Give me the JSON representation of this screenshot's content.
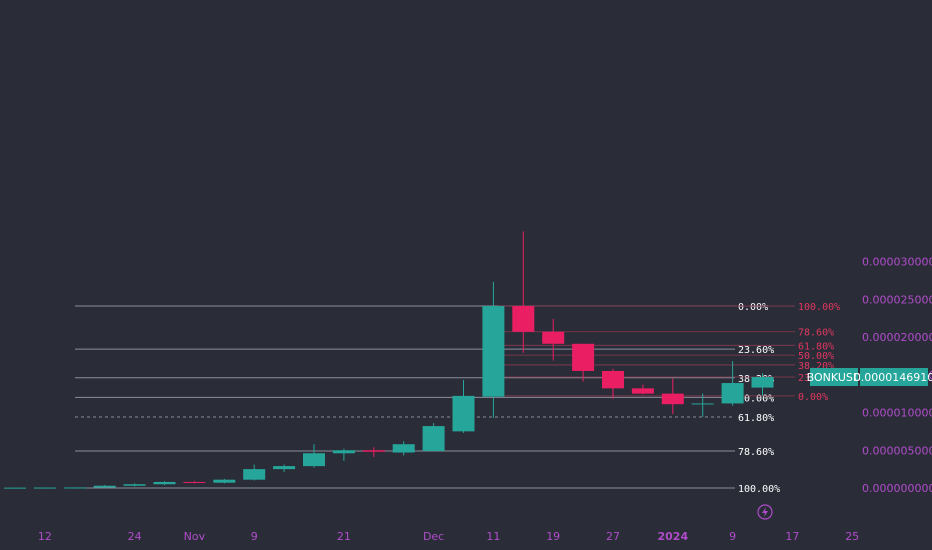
{
  "chart_data": {
    "type": "candlestick",
    "symbol": "BONKUSD",
    "last_price_label": "0.0000146910",
    "colors": {
      "up": "#26a69a",
      "down": "#e91e63",
      "background": "#2a2d38",
      "axis_text": "#b04ccb",
      "fib_line": "#8a8f9c",
      "fib2_text": "#e0365f"
    },
    "y_axis": {
      "range": [
        -5e-07,
        3.35e-05
      ],
      "ticks": [
        {
          "value": 0.0,
          "label": "0.0000000000"
        },
        {
          "value": 5e-06,
          "label": "0.0000050000"
        },
        {
          "value": 1e-05,
          "label": "0.0000100000"
        },
        {
          "value": 1.5e-05,
          "label": "0.0000150000"
        },
        {
          "value": 2e-05,
          "label": "0.0000200000"
        },
        {
          "value": 2.5e-05,
          "label": "0.0000250000"
        },
        {
          "value": 3e-05,
          "label": "0.0000300000"
        }
      ]
    },
    "x_axis": {
      "ticks": [
        {
          "index": 1,
          "label": "12"
        },
        {
          "index": 4,
          "label": "24"
        },
        {
          "index": 6,
          "label": "Nov"
        },
        {
          "index": 8,
          "label": "9"
        },
        {
          "index": 11,
          "label": "21"
        },
        {
          "index": 14,
          "label": "Dec"
        },
        {
          "index": 16,
          "label": "11"
        },
        {
          "index": 18,
          "label": "19"
        },
        {
          "index": 20,
          "label": "27"
        },
        {
          "index": 22,
          "label": "2024"
        },
        {
          "index": 24,
          "label": "9"
        },
        {
          "index": 26,
          "label": "17"
        },
        {
          "index": 28,
          "label": "25"
        }
      ]
    },
    "candles": [
      {
        "o": 5e-08,
        "h": 6e-08,
        "l": 4e-08,
        "c": 5e-08
      },
      {
        "o": 5e-08,
        "h": 6e-08,
        "l": 4e-08,
        "c": 6e-08
      },
      {
        "o": 6e-08,
        "h": 8e-08,
        "l": 5e-08,
        "c": 7e-08
      },
      {
        "o": 7e-08,
        "h": 4e-07,
        "l": 6e-08,
        "c": 3e-07
      },
      {
        "o": 3e-07,
        "h": 6e-07,
        "l": 2e-07,
        "c": 5e-07
      },
      {
        "o": 5e-07,
        "h": 9e-07,
        "l": 4e-07,
        "c": 8e-07
      },
      {
        "o": 8e-07,
        "h": 9e-07,
        "l": 6e-07,
        "c": 7e-07
      },
      {
        "o": 7e-07,
        "h": 1.2e-06,
        "l": 6e-07,
        "c": 1.1e-06
      },
      {
        "o": 1.1e-06,
        "h": 3.1e-06,
        "l": 1e-06,
        "c": 2.5e-06
      },
      {
        "o": 2.5e-06,
        "h": 3.1e-06,
        "l": 2.1e-06,
        "c": 2.9e-06
      },
      {
        "o": 2.9e-06,
        "h": 5.8e-06,
        "l": 2.7e-06,
        "c": 4.6e-06
      },
      {
        "o": 4.6e-06,
        "h": 5.2e-06,
        "l": 3.6e-06,
        "c": 5e-06
      },
      {
        "o": 5e-06,
        "h": 5.4e-06,
        "l": 4.1e-06,
        "c": 4.8e-06
      },
      {
        "o": 4.7e-06,
        "h": 6.2e-06,
        "l": 4.3e-06,
        "c": 5.8e-06
      },
      {
        "o": 4.9e-06,
        "h": 8.6e-06,
        "l": 4.9e-06,
        "c": 8.2e-06
      },
      {
        "o": 7.5e-06,
        "h": 1.43e-05,
        "l": 7.3e-06,
        "c": 1.22e-05
      },
      {
        "o": 1.21e-05,
        "h": 2.73e-05,
        "l": 9.3e-06,
        "c": 2.41e-05
      },
      {
        "o": 2.41e-05,
        "h": 3.4e-05,
        "l": 1.79e-05,
        "c": 2.07e-05
      },
      {
        "o": 2.07e-05,
        "h": 2.24e-05,
        "l": 1.69e-05,
        "c": 1.91e-05
      },
      {
        "o": 1.91e-05,
        "h": 1.91e-05,
        "l": 1.41e-05,
        "c": 1.55e-05
      },
      {
        "o": 1.55e-05,
        "h": 1.58e-05,
        "l": 1.18e-05,
        "c": 1.32e-05
      },
      {
        "o": 1.32e-05,
        "h": 1.37e-05,
        "l": 1.24e-05,
        "c": 1.25e-05
      },
      {
        "o": 1.25e-05,
        "h": 1.45e-05,
        "l": 9.8e-06,
        "c": 1.11e-05
      },
      {
        "o": 1.11e-05,
        "h": 1.25e-05,
        "l": 9.4e-06,
        "c": 1.12e-05
      },
      {
        "o": 1.12e-05,
        "h": 1.68e-05,
        "l": 1.09e-05,
        "c": 1.39e-05
      },
      {
        "o": 1.33e-05,
        "h": 1.52e-05,
        "l": 1.22e-05,
        "c": 1.47e-05
      }
    ],
    "fib_levels": [
      {
        "value": 0.0,
        "label": "100.00%"
      },
      {
        "value": 4.9e-06,
        "label": "78.60%"
      },
      {
        "value": 9.4e-06,
        "label": "61.80%",
        "dashed": true
      },
      {
        "value": 1.2e-05,
        "label": "50.00%"
      },
      {
        "value": 1.46e-05,
        "label": "38.20%"
      },
      {
        "value": 1.84e-05,
        "label": "23.60%"
      },
      {
        "value": 2.41e-05,
        "label": "0.00%"
      }
    ],
    "fib2_levels": [
      {
        "value": 2.41e-05,
        "label": "100.00%"
      },
      {
        "value": 2.07e-05,
        "label": "78.60%"
      },
      {
        "value": 1.89e-05,
        "label": "61.80%"
      },
      {
        "value": 1.76e-05,
        "label": "50.00%"
      },
      {
        "value": 1.63e-05,
        "label": "38.20%"
      },
      {
        "value": 1.47e-05,
        "label": "23."
      },
      {
        "value": 1.22e-05,
        "label": "0.00%"
      }
    ]
  }
}
